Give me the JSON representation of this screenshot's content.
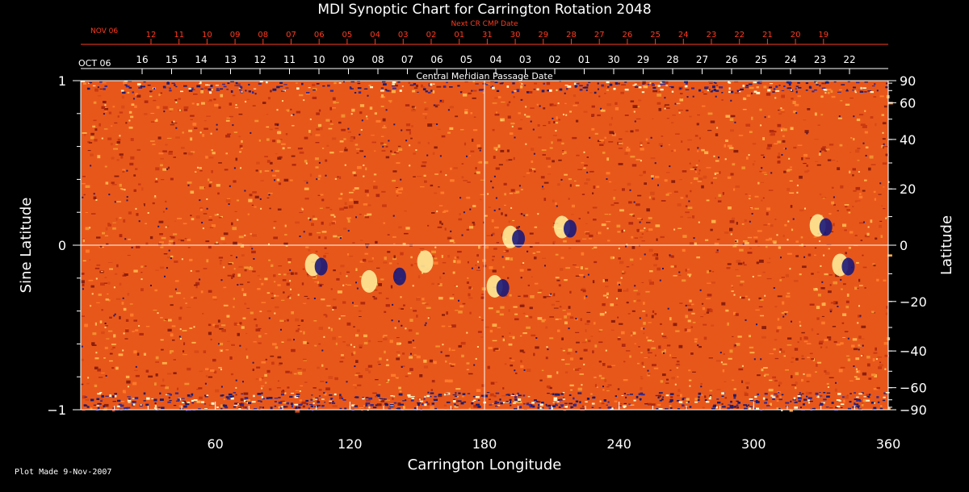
{
  "chart_data": {
    "type": "heatmap",
    "title": "MDI Synoptic Chart for Carrington Rotation 2048",
    "xlabel": "Carrington Longitude",
    "ylabel_left": "Sine Latitude",
    "ylabel_right": "Latitude",
    "xlim": [
      0,
      360
    ],
    "ylim": [
      -1,
      1
    ],
    "x_ticks": [
      60,
      120,
      180,
      240,
      300,
      360
    ],
    "x_tick_labels": [
      "60",
      "120",
      "180",
      "240",
      "300",
      "360"
    ],
    "y_left_ticks": [
      1,
      0,
      -1
    ],
    "y_left_tick_labels": [
      "1",
      "0",
      "−1"
    ],
    "y_right_ticks": [
      90,
      60,
      40,
      20,
      0,
      -20,
      -40,
      -60,
      -90
    ],
    "y_right_tick_labels": [
      "90",
      "60",
      "40",
      "20",
      "0",
      "−20",
      "−40",
      "−60",
      "−90"
    ],
    "crosshair": {
      "longitude": 180,
      "sine_latitude": 0
    },
    "top_axis_current": {
      "label": "Central Meridian Passage Date",
      "start_label": "OCT 06",
      "dates": [
        "16",
        "15",
        "14",
        "13",
        "12",
        "11",
        "10",
        "09",
        "08",
        "07",
        "06",
        "05",
        "04",
        "03",
        "02",
        "01",
        "30",
        "29",
        "28",
        "27",
        "26",
        "25",
        "24",
        "23",
        "22"
      ]
    },
    "top_axis_next": {
      "label": "Next CR CMP Date",
      "start_label": "NOV 06",
      "dates": [
        "12",
        "11",
        "10",
        "09",
        "08",
        "07",
        "06",
        "05",
        "04",
        "03",
        "02",
        "01",
        "31",
        "30",
        "29",
        "28",
        "27",
        "26",
        "25",
        "24",
        "23",
        "22",
        "21",
        "20",
        "19"
      ]
    },
    "features": [
      {
        "longitude": 105,
        "sine_latitude": -0.12,
        "polarity": "mixed"
      },
      {
        "longitude": 130,
        "sine_latitude": -0.22,
        "polarity": "positive"
      },
      {
        "longitude": 140,
        "sine_latitude": -0.18,
        "polarity": "negative"
      },
      {
        "longitude": 155,
        "sine_latitude": -0.1,
        "polarity": "positive"
      },
      {
        "longitude": 186,
        "sine_latitude": -0.25,
        "polarity": "mixed"
      },
      {
        "longitude": 193,
        "sine_latitude": 0.05,
        "polarity": "mixed"
      },
      {
        "longitude": 216,
        "sine_latitude": 0.11,
        "polarity": "mixed"
      },
      {
        "longitude": 340,
        "sine_latitude": -0.12,
        "polarity": "mixed"
      },
      {
        "longitude": 330,
        "sine_latitude": 0.12,
        "polarity": "mixed"
      }
    ],
    "colors": {
      "background": "#000000",
      "field": "#e8571a",
      "positive": "#fff3a0",
      "negative": "#1a1a7a",
      "axis": "#ffffff",
      "next_cr": "#ff3b1f"
    }
  },
  "footer": {
    "plot_made": "Plot Made  9-Nov-2007"
  }
}
